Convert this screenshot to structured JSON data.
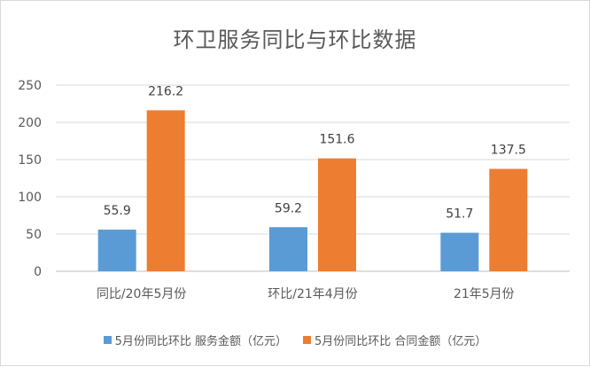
{
  "chart_data": {
    "type": "bar",
    "title": "环卫服务同比与环比数据",
    "categories": [
      "同比/20年5月份",
      "环比/21年4月份",
      "21年5月份"
    ],
    "series": [
      {
        "name": "5月份同比环比 服务金额（亿元）",
        "values": [
          55.9,
          59.2,
          51.7
        ],
        "color": "#5b9bd5"
      },
      {
        "name": "5月份同比环比 合同金额（亿元）",
        "values": [
          216.2,
          151.6,
          137.5
        ],
        "color": "#ed7d31"
      }
    ],
    "data_labels": [
      [
        "55.9",
        "59.2",
        "51.7"
      ],
      [
        "216.2",
        "151.6",
        "137.5"
      ]
    ],
    "yticks": [
      "0",
      "50",
      "100",
      "150",
      "200",
      "250"
    ],
    "ylim": [
      0,
      250
    ],
    "grid": true,
    "legend_position": "bottom",
    "xlabel": "",
    "ylabel": ""
  }
}
